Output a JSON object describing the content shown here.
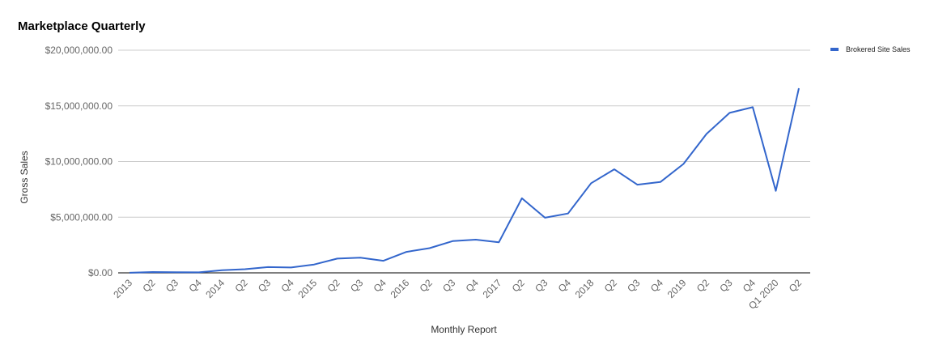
{
  "chart_data": {
    "type": "line",
    "title": "Marketplace Quarterly",
    "xlabel": "Monthly Report",
    "ylabel": "Gross Sales",
    "ylim": [
      0,
      20000000
    ],
    "y_ticks": [
      0,
      5000000,
      10000000,
      15000000,
      20000000
    ],
    "y_tick_labels": [
      "$0.00",
      "$5,000,000.00",
      "$10,000,000.00",
      "$15,000,000.00",
      "$20,000,000.00"
    ],
    "grid": true,
    "legend_position": "top-right",
    "categories": [
      "2013",
      "Q2",
      "Q3",
      "Q4",
      "2014",
      "Q2",
      "Q3",
      "Q4",
      "2015",
      "Q2",
      "Q3",
      "Q4",
      "2016",
      "Q2",
      "Q3",
      "Q4",
      "2017",
      "Q2",
      "Q3",
      "Q4",
      "2018",
      "Q2",
      "Q3",
      "Q4",
      "2019",
      "Q2",
      "Q3",
      "Q4",
      "Q1 2020",
      "Q2"
    ],
    "series": [
      {
        "name": "Brokered Site Sales",
        "color": "#3366cc",
        "values": [
          10000,
          70000,
          60000,
          40000,
          230000,
          330000,
          520000,
          480000,
          750000,
          1280000,
          1370000,
          1080000,
          1880000,
          2220000,
          2850000,
          2980000,
          2740000,
          6700000,
          4950000,
          5330000,
          8050000,
          9300000,
          7920000,
          8160000,
          9780000,
          12480000,
          14370000,
          14880000,
          7370000,
          16580000
        ]
      }
    ]
  }
}
